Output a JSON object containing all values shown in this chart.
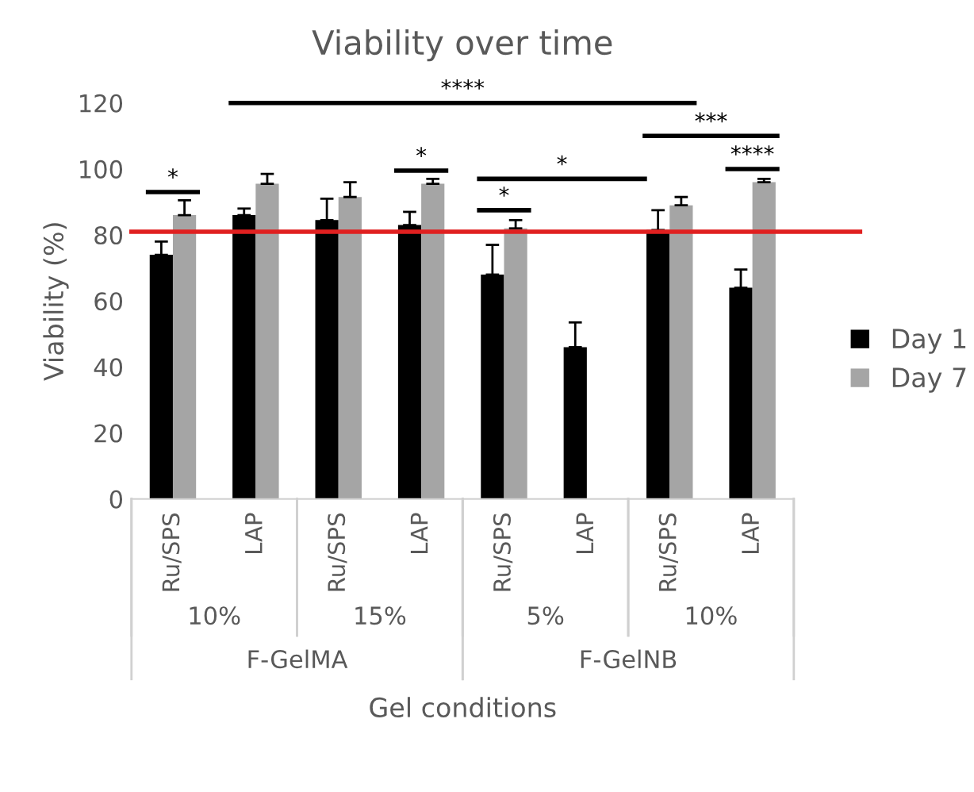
{
  "chart_data": {
    "type": "bar",
    "title": "Viability over time",
    "xlabel": "Gel conditions",
    "ylabel": "Viability (%)",
    "categories": [
      "Ru/SPS",
      "LAP",
      "Ru/SPS",
      "LAP",
      "Ru/SPS",
      "LAP",
      "Ru/SPS",
      "LAP"
    ],
    "series": [
      {
        "name": "Day 1",
        "color": "#000000",
        "values": [
          74,
          86,
          84.5,
          83,
          68,
          46,
          81.5,
          64
        ],
        "errors": [
          [
            74,
            78
          ],
          [
            86,
            88
          ],
          [
            84.5,
            91
          ],
          [
            83,
            87
          ],
          [
            68,
            77
          ],
          [
            46,
            53.5
          ],
          [
            81.5,
            87.5
          ],
          [
            64,
            69.5
          ]
        ]
      },
      {
        "name": "Day 7",
        "color": "#a5a5a5",
        "values": [
          86,
          95.5,
          91.5,
          95.5,
          82,
          null,
          89,
          96
        ],
        "errors": [
          [
            86,
            90.5
          ],
          [
            95.5,
            98.5
          ],
          [
            91.5,
            96
          ],
          [
            95.5,
            97
          ],
          [
            82,
            84.5
          ],
          null,
          [
            89,
            91.5
          ],
          [
            96,
            97
          ]
        ]
      }
    ],
    "ylim": [
      0,
      120
    ],
    "yticks": [
      0,
      20,
      40,
      60,
      80,
      100,
      120
    ],
    "grid": false,
    "legend": "right",
    "ref_lines": [
      {
        "axis": "y",
        "value": 81,
        "color": "#e02020"
      }
    ],
    "annotations": [
      "10%",
      "15%",
      "5%",
      "10%",
      "F-GelMA",
      "F-GelNB",
      "*",
      "****",
      "*",
      "*",
      "*",
      "***",
      "****"
    ]
  }
}
